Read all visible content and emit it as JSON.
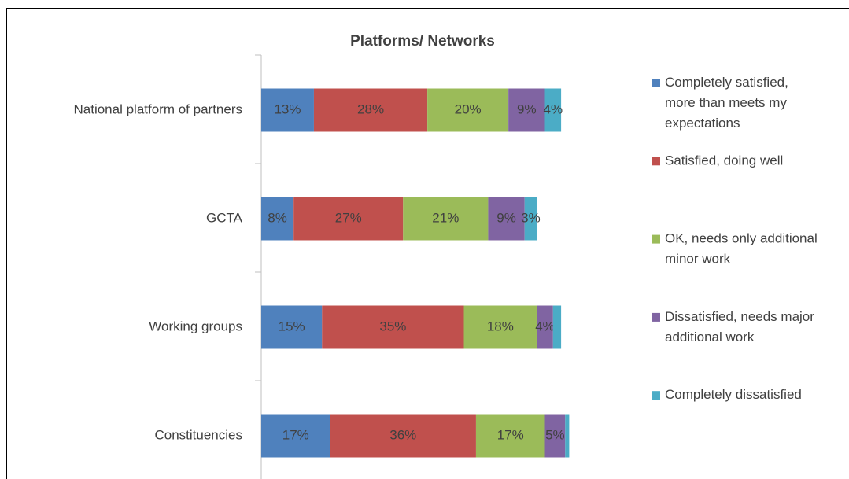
{
  "chart_data": {
    "type": "stacked-bar",
    "orientation": "horizontal",
    "title": "Platforms/ Networks",
    "categories": [
      "National  platform of partners",
      "GCTA",
      "Working groups",
      "Constituencies"
    ],
    "series": [
      {
        "name": "Completely satisfied, more than meets my expectations",
        "color": "#4f81bd",
        "values": [
          13,
          8,
          15,
          17
        ],
        "value_labels": [
          "13%",
          "8%",
          "15%",
          "17%"
        ]
      },
      {
        "name": "Satisfied, doing well",
        "color": "#c0504d",
        "values": [
          28,
          27,
          35,
          36
        ],
        "value_labels": [
          "28%",
          "27%",
          "35%",
          "36%"
        ]
      },
      {
        "name": "OK, needs only additional minor work",
        "color": "#9bbb59",
        "values": [
          20,
          21,
          18,
          17
        ],
        "value_labels": [
          "20%",
          "21%",
          "18%",
          "17%"
        ]
      },
      {
        "name": "Dissatisfied, needs major additional work",
        "color": "#8064a2",
        "values": [
          9,
          9,
          4,
          5
        ],
        "value_labels": [
          "9%",
          "9%",
          "4%",
          "5%"
        ]
      },
      {
        "name": "Completely dissatisfied",
        "color": "#4bacc6",
        "values": [
          4,
          3,
          2,
          1
        ],
        "value_labels": [
          "4%",
          "3%",
          null,
          null
        ]
      }
    ]
  }
}
